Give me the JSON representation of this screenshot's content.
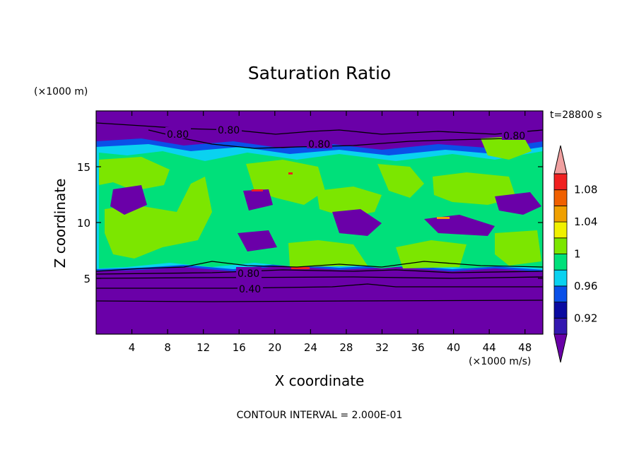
{
  "chart_data": {
    "type": "heatmap",
    "title": "Saturation Ratio",
    "xlabel": "X coordinate",
    "ylabel": "Z coordinate",
    "x_unit": "(×1000 m/s)",
    "y_unit": "(×1000 m)",
    "time_label": "t=28800 s",
    "footer": "CONTOUR INTERVAL = 2.000E-01",
    "xlim": [
      0,
      50
    ],
    "ylim": [
      0,
      20
    ],
    "x_ticks": [
      4,
      8,
      12,
      16,
      20,
      24,
      28,
      32,
      36,
      40,
      44,
      48
    ],
    "y_ticks": [
      5,
      10,
      15
    ],
    "colorbar": {
      "levels": [
        0.9,
        0.92,
        0.94,
        0.96,
        0.98,
        1.0,
        1.02,
        1.04,
        1.06,
        1.08,
        1.1
      ],
      "tick_labels": [
        "0.92",
        "0.96",
        "1",
        "1.04",
        "1.08"
      ],
      "tick_values": [
        0.92,
        0.96,
        1.0,
        1.04,
        1.08
      ],
      "colors": [
        "#6a00a8",
        "#3318b0",
        "#0a0aa0",
        "#0a50e8",
        "#0ad2f0",
        "#00e07a",
        "#7ce600",
        "#f0f000",
        "#f0a000",
        "#f06000",
        "#f02020",
        "#f0a0a0"
      ]
    },
    "contour_labels": [
      "0.80",
      "0.80",
      "0.80",
      "0.80",
      "0.80",
      "0.40"
    ]
  }
}
